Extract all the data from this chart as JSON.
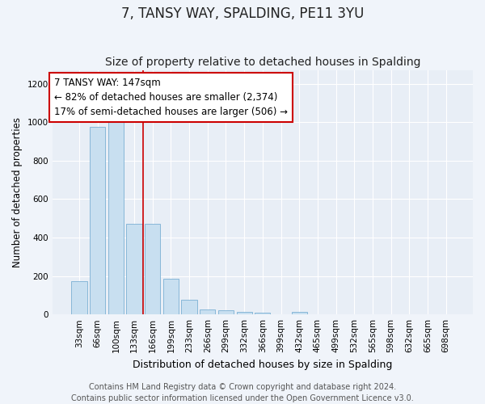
{
  "title": "7, TANSY WAY, SPALDING, PE11 3YU",
  "subtitle": "Size of property relative to detached houses in Spalding",
  "xlabel": "Distribution of detached houses by size in Spalding",
  "ylabel": "Number of detached properties",
  "categories": [
    "33sqm",
    "66sqm",
    "100sqm",
    "133sqm",
    "166sqm",
    "199sqm",
    "233sqm",
    "266sqm",
    "299sqm",
    "332sqm",
    "366sqm",
    "399sqm",
    "432sqm",
    "465sqm",
    "499sqm",
    "532sqm",
    "565sqm",
    "598sqm",
    "632sqm",
    "665sqm",
    "698sqm"
  ],
  "values": [
    175,
    975,
    1000,
    470,
    470,
    185,
    75,
    25,
    20,
    15,
    10,
    0,
    15,
    0,
    0,
    0,
    0,
    0,
    0,
    0,
    0
  ],
  "bar_color": "#c8dff0",
  "bar_edge_color": "#7ab0d4",
  "bar_width": 0.85,
  "red_line_x": 3.5,
  "annotation_text": "7 TANSY WAY: 147sqm\n← 82% of detached houses are smaller (2,374)\n17% of semi-detached houses are larger (506) →",
  "annotation_box_color": "#ffffff",
  "annotation_border_color": "#cc0000",
  "ylim": [
    0,
    1270
  ],
  "yticks": [
    0,
    200,
    400,
    600,
    800,
    1000,
    1200
  ],
  "plot_background_color": "#e8eef6",
  "fig_background_color": "#f0f4fa",
  "grid_color": "#ffffff",
  "footer_text": "Contains HM Land Registry data © Crown copyright and database right 2024.\nContains public sector information licensed under the Open Government Licence v3.0.",
  "title_fontsize": 12,
  "subtitle_fontsize": 10,
  "xlabel_fontsize": 9,
  "ylabel_fontsize": 8.5,
  "tick_fontsize": 7.5,
  "annotation_fontsize": 8.5,
  "footer_fontsize": 7
}
